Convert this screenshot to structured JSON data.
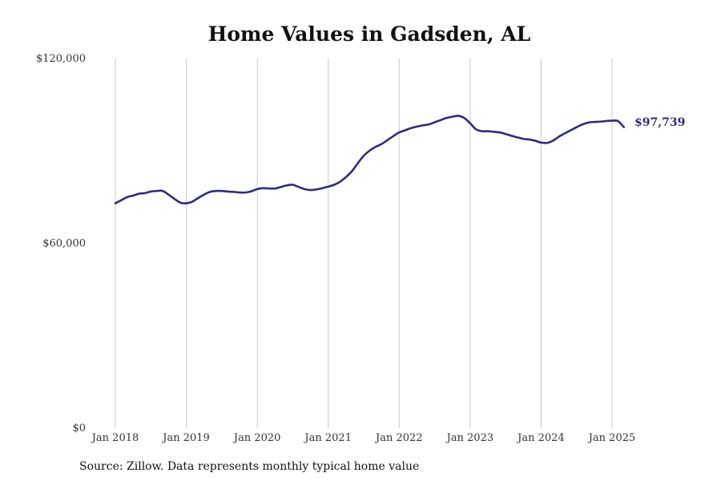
{
  "title": "Home Values in Gadsden, AL",
  "source": "Source: Zillow. Data represents monthly typical home value",
  "colors": {
    "line": "#2e2b7e",
    "grid": "#c8c8c8",
    "text": "#333333"
  },
  "chart_data": {
    "type": "line",
    "title": "Home Values in Gadsden, AL",
    "xlabel": "",
    "ylabel": "",
    "ylim": [
      0,
      120000
    ],
    "yticks": [
      0,
      60000,
      120000
    ],
    "ytick_labels": [
      "$0",
      "$60,000",
      "$120,000"
    ],
    "xticks": [
      "2018-01",
      "2019-01",
      "2020-01",
      "2021-01",
      "2022-01",
      "2023-01",
      "2024-01",
      "2025-01"
    ],
    "xtick_labels": [
      "Jan 2018",
      "Jan 2019",
      "Jan 2020",
      "Jan 2021",
      "Jan 2022",
      "Jan 2023",
      "Jan 2024",
      "Jan 2025"
    ],
    "grid": {
      "x": true,
      "y": false
    },
    "legend": "none",
    "end_label": "$97,739",
    "series": [
      {
        "x": [
          "2018-01",
          "2018-02",
          "2018-03",
          "2018-04",
          "2018-05",
          "2018-06",
          "2018-07",
          "2018-08",
          "2018-09",
          "2018-10",
          "2018-11",
          "2018-12",
          "2019-01",
          "2019-02",
          "2019-03",
          "2019-04",
          "2019-05",
          "2019-06",
          "2019-07",
          "2019-08",
          "2019-09",
          "2019-10",
          "2019-11",
          "2019-12",
          "2020-01",
          "2020-02",
          "2020-03",
          "2020-04",
          "2020-05",
          "2020-06",
          "2020-07",
          "2020-08",
          "2020-09",
          "2020-10",
          "2020-11",
          "2020-12",
          "2021-01",
          "2021-02",
          "2021-03",
          "2021-04",
          "2021-05",
          "2021-06",
          "2021-07",
          "2021-08",
          "2021-09",
          "2021-10",
          "2021-11",
          "2021-12",
          "2022-01",
          "2022-02",
          "2022-03",
          "2022-04",
          "2022-05",
          "2022-06",
          "2022-07",
          "2022-08",
          "2022-09",
          "2022-10",
          "2022-11",
          "2022-12",
          "2023-01",
          "2023-02",
          "2023-03",
          "2023-04",
          "2023-05",
          "2023-06",
          "2023-07",
          "2023-08",
          "2023-09",
          "2023-10",
          "2023-11",
          "2023-12",
          "2024-01",
          "2024-02",
          "2024-03",
          "2024-04",
          "2024-05",
          "2024-06",
          "2024-07",
          "2024-08",
          "2024-09",
          "2024-10",
          "2024-11",
          "2024-12",
          "2025-01",
          "2025-02",
          "2025-03"
        ],
        "values": [
          73000,
          74000,
          75000,
          75500,
          76100,
          76300,
          76800,
          77000,
          77000,
          75800,
          74400,
          73200,
          73000,
          73500,
          74700,
          75800,
          76700,
          77000,
          77000,
          76800,
          76700,
          76500,
          76500,
          76900,
          77600,
          77900,
          77800,
          77800,
          78300,
          78800,
          79000,
          78300,
          77600,
          77300,
          77500,
          77900,
          78400,
          79000,
          80000,
          81500,
          83400,
          86000,
          88400,
          90100,
          91300,
          92200,
          93500,
          94800,
          96000,
          96700,
          97400,
          97900,
          98300,
          98600,
          99300,
          100000,
          100700,
          101100,
          101400,
          100700,
          99000,
          97000,
          96400,
          96400,
          96200,
          96000,
          95500,
          94900,
          94400,
          93900,
          93700,
          93300,
          92700,
          92600,
          93300,
          94600,
          95700,
          96700,
          97700,
          98600,
          99200,
          99400,
          99500,
          99700,
          99800,
          99700,
          97739
        ]
      }
    ]
  }
}
